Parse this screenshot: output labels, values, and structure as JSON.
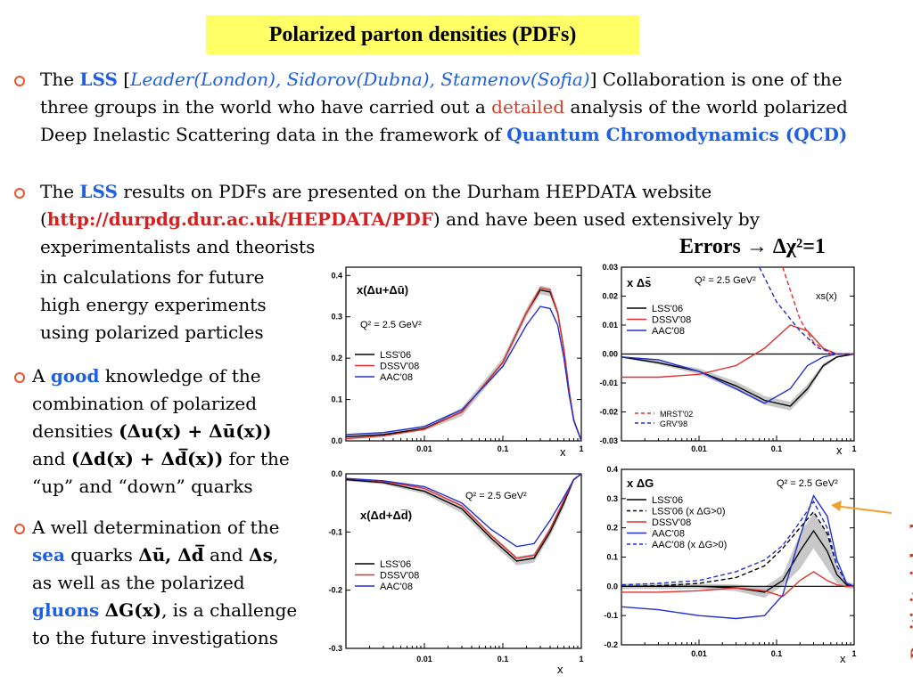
{
  "title": "Polarized parton densities (PDFs)",
  "b1": {
    "p1": "The ",
    "lss": "LSS",
    "p2": " [",
    "names": "Leader(London), Sidorov(Dubna), Stamenov(Sofia)",
    "p3": "] Collaboration is one of the three groups in the world who have carried out a ",
    "detailed": "detailed",
    "p4": " analysis of the world polarized Deep Inelastic Scattering data in the framework of ",
    "qcd": "Quantum Chromodynamics (QCD)"
  },
  "b2": {
    "p1": "The ",
    "lss": "LSS",
    "p2": " results on PDFs are presented on the Durham HEPDATA website (",
    "url": "http://durpdg.dur.ac.uk/HEPDATA/PDF",
    "p3": ") and have been used extensively by experimentalists and theorists",
    "p4": "in calculations for future high energy experiments using polarized particles"
  },
  "b3": {
    "p1": "A ",
    "good": "good",
    "p2": " knowledge of the combination of polarized densities ",
    "combo1": "(Δu(x) + Δū(x))",
    "p3": " and ",
    "combo2": "(Δd(x) + Δd̅(x))",
    "p4": " for the “up” and “down” quarks"
  },
  "b4": {
    "p1": "A well determination of the ",
    "sea": "sea",
    "p2": " quarks ",
    "q": "Δū, Δd̅",
    "p3": " and ",
    "s": "Δs",
    "p4": ", as well as the polarized ",
    "gluons": "gluons",
    "p5": " ",
    "g": "ΔG(x)",
    "p6": ", is a challenge to the future investigations"
  },
  "errors": "Errors → Δχ²=1",
  "positivity": "Positivity is broken",
  "colors": {
    "accent_blue": "#1f5fe0",
    "url_red": "#d42020",
    "lss06": "#000000",
    "dssv08": "#e03030",
    "aac08": "#2030d0",
    "band": "#c8c8c8",
    "title_bg": "#ffff66"
  },
  "chart_data": [
    {
      "type": "line",
      "xscale": "log",
      "xlim": [
        0.001,
        1
      ],
      "ylim": [
        0,
        0.42
      ],
      "xticks": [
        "0.01",
        "0.1",
        "1"
      ],
      "yticks": [
        "0.0",
        "0.1",
        "0.2",
        "0.3",
        "0.4"
      ],
      "xlabel": "x",
      "label": "x(Δu+Δū)",
      "q2": "Q² = 2.5 GeV²",
      "x": [
        0.001,
        0.003,
        0.01,
        0.03,
        0.1,
        0.2,
        0.3,
        0.4,
        0.5,
        0.6,
        0.7,
        0.8,
        1.0
      ],
      "series": [
        {
          "name": "LSS'06",
          "values": [
            0.01,
            0.015,
            0.03,
            0.07,
            0.19,
            0.31,
            0.365,
            0.36,
            0.31,
            0.22,
            0.12,
            0.05,
            0.0
          ]
        },
        {
          "name": "DSSV'08",
          "values": [
            0.005,
            0.012,
            0.028,
            0.07,
            0.19,
            0.31,
            0.37,
            0.365,
            0.31,
            0.22,
            0.12,
            0.05,
            0.0
          ]
        },
        {
          "name": "AAC'08",
          "values": [
            0.015,
            0.02,
            0.035,
            0.075,
            0.18,
            0.28,
            0.325,
            0.32,
            0.28,
            0.2,
            0.11,
            0.05,
            0.0
          ]
        }
      ]
    },
    {
      "type": "line",
      "xscale": "log",
      "xlim": [
        0.001,
        1
      ],
      "ylim": [
        -0.3,
        0
      ],
      "xticks": [
        "0.01",
        "0.1",
        "1"
      ],
      "yticks": [
        "0.0",
        "-0.1",
        "-0.2",
        "-0.3"
      ],
      "xlabel": "x",
      "label": "x(Δd+Δd̅)",
      "q2": "Q² = 2.5 GeV²",
      "x": [
        0.001,
        0.003,
        0.01,
        0.03,
        0.07,
        0.15,
        0.25,
        0.4,
        0.6,
        0.8,
        1.0
      ],
      "series": [
        {
          "name": "LSS'06",
          "values": [
            -0.01,
            -0.015,
            -0.03,
            -0.06,
            -0.11,
            -0.15,
            -0.145,
            -0.1,
            -0.05,
            -0.01,
            0.0
          ]
        },
        {
          "name": "DSSV'08",
          "values": [
            -0.008,
            -0.013,
            -0.025,
            -0.055,
            -0.105,
            -0.145,
            -0.14,
            -0.095,
            -0.045,
            -0.01,
            0.0
          ]
        },
        {
          "name": "AAC'08",
          "values": [
            -0.008,
            -0.012,
            -0.022,
            -0.05,
            -0.095,
            -0.125,
            -0.12,
            -0.08,
            -0.04,
            -0.01,
            0.0
          ]
        }
      ]
    },
    {
      "type": "line",
      "xscale": "log",
      "xlim": [
        0.001,
        1
      ],
      "ylim": [
        -0.03,
        0.03
      ],
      "xticks": [
        "0.01",
        "0.1",
        "1"
      ],
      "yticks": [
        "0.03",
        "0.02",
        "0.01",
        "0.00",
        "-0.01",
        "-0.02",
        "-0.03"
      ],
      "xlabel": "x",
      "label": "x Δs̄",
      "q2": "Q² = 2.5 GeV²",
      "annotation": "xs(x)",
      "x": [
        0.001,
        0.003,
        0.01,
        0.03,
        0.07,
        0.15,
        0.25,
        0.4,
        0.6,
        1.0
      ],
      "series": [
        {
          "name": "LSS'06",
          "values": [
            -0.001,
            -0.003,
            -0.006,
            -0.011,
            -0.016,
            -0.018,
            -0.012,
            -0.004,
            -0.001,
            0.0
          ]
        },
        {
          "name": "DSSV'08",
          "values": [
            -0.008,
            -0.008,
            -0.007,
            -0.004,
            0.002,
            0.01,
            0.008,
            0.002,
            0.0,
            0.0
          ]
        },
        {
          "name": "AAC'08",
          "values": [
            -0.001,
            -0.002,
            -0.006,
            -0.012,
            -0.017,
            -0.012,
            -0.004,
            -0.001,
            0.0,
            0.0
          ]
        },
        {
          "name": "MRST'02",
          "style": "dashed",
          "x": [
            0.12,
            0.2,
            0.3,
            0.5,
            1.0
          ],
          "values": [
            0.03,
            0.012,
            0.004,
            0.0,
            0.0
          ]
        },
        {
          "name": "GRV'98",
          "style": "dashed",
          "x": [
            0.06,
            0.1,
            0.2,
            0.35,
            0.6,
            1.0
          ],
          "values": [
            0.03,
            0.018,
            0.008,
            0.002,
            0.0,
            0.0
          ]
        }
      ]
    },
    {
      "type": "line",
      "xscale": "log",
      "xlim": [
        0.001,
        1
      ],
      "ylim": [
        -0.2,
        0.4
      ],
      "xticks": [
        "0.01",
        "0.1",
        "1"
      ],
      "yticks": [
        "0.4",
        "0.3",
        "0.2",
        "0.1",
        "0.0",
        "-0.1",
        "-0.2"
      ],
      "xlabel": "x",
      "label": "x ΔG",
      "q2": "Q² = 2.5 GeV²",
      "x": [
        0.001,
        0.003,
        0.01,
        0.03,
        0.07,
        0.12,
        0.2,
        0.3,
        0.45,
        0.6,
        0.8,
        1.0
      ],
      "series": [
        {
          "name": "LSS'06",
          "values": [
            0.0,
            0.0,
            0.0,
            -0.005,
            -0.02,
            0.02,
            0.12,
            0.19,
            0.12,
            0.04,
            0.005,
            0.0
          ]
        },
        {
          "name": "LSS'06 (x ΔG>0)",
          "style": "dashed",
          "values": [
            0.0,
            0.002,
            0.01,
            0.03,
            0.07,
            0.13,
            0.2,
            0.255,
            0.18,
            0.07,
            0.01,
            0.0
          ]
        },
        {
          "name": "DSSV'08",
          "values": [
            -0.02,
            -0.02,
            -0.015,
            -0.005,
            -0.015,
            -0.035,
            0.02,
            0.05,
            0.02,
            0.005,
            0.0,
            0.0
          ]
        },
        {
          "name": "AAC'08",
          "values": [
            -0.07,
            -0.08,
            -0.1,
            -0.11,
            -0.1,
            -0.03,
            0.17,
            0.31,
            0.24,
            0.09,
            0.01,
            0.0
          ]
        },
        {
          "name": "AAC'08 (x ΔG>0)",
          "style": "dashed",
          "values": [
            0.005,
            0.01,
            0.02,
            0.05,
            0.09,
            0.14,
            0.22,
            0.29,
            0.2,
            0.07,
            0.01,
            0.0
          ]
        }
      ]
    }
  ]
}
